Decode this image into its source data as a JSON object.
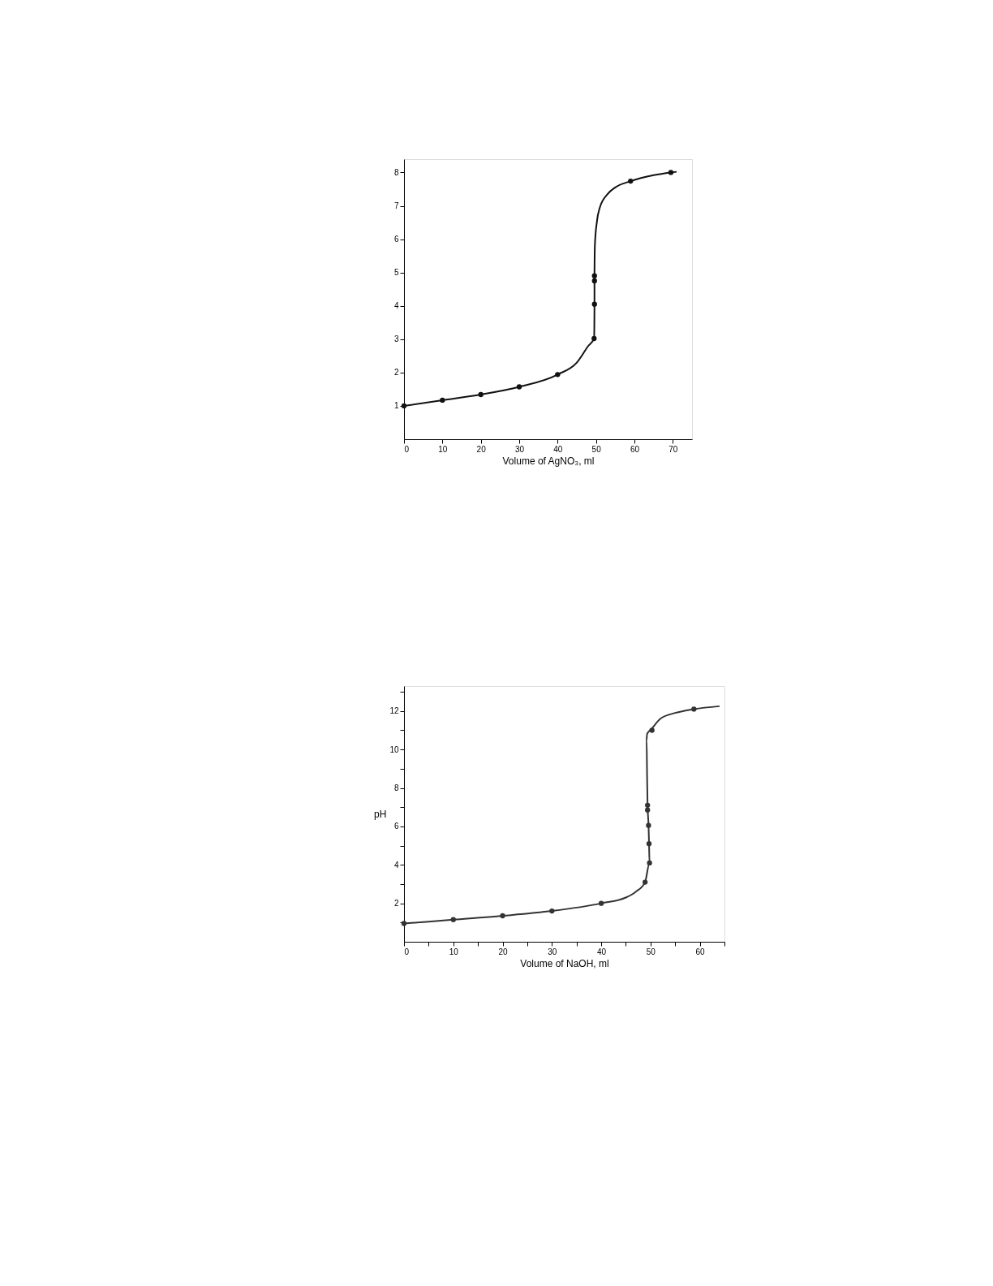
{
  "chart_data": [
    {
      "type": "line",
      "xlabel": "Volume of AgNO₃, ml",
      "xlim": [
        0,
        75
      ],
      "ylim": [
        0,
        8.4
      ],
      "xticks": [
        0,
        10,
        20,
        30,
        40,
        50,
        60,
        70
      ],
      "yticks": [
        1,
        2,
        3,
        4,
        5,
        6,
        7,
        8
      ],
      "grid": false,
      "series": [
        {
          "color": "#111111",
          "marker": "none",
          "line_style": "solid",
          "x": [
            0,
            10,
            20,
            30,
            40,
            45,
            48,
            49.5,
            49.6,
            49.6,
            49.7,
            50.2,
            51,
            53,
            55,
            59,
            65,
            69.5,
            71
          ],
          "values": [
            1.0,
            1.17,
            1.34,
            1.57,
            1.94,
            2.3,
            2.8,
            3.02,
            4.05,
            4.9,
            5.8,
            6.5,
            6.95,
            7.35,
            7.55,
            7.74,
            7.92,
            8.0,
            8.02
          ]
        },
        {
          "type": "scatter",
          "color": "#111111",
          "marker": "circle",
          "x": [
            0,
            10,
            20,
            30,
            40,
            49.5,
            49.6,
            49.6,
            49.6,
            59,
            69.5
          ],
          "values": [
            1.0,
            1.17,
            1.34,
            1.57,
            1.94,
            3.02,
            4.05,
            4.75,
            4.9,
            7.74,
            8.0
          ]
        }
      ]
    },
    {
      "type": "line",
      "xlabel": "Volume of NaOH, ml",
      "ylabel": "pH",
      "xlim": [
        0,
        65
      ],
      "ylim": [
        0,
        13.3
      ],
      "grid": false,
      "xticks": [
        0,
        {
          "value": 5,
          "label": null
        },
        10,
        {
          "value": 15,
          "label": null
        },
        20,
        {
          "value": 25,
          "label": null
        },
        30,
        {
          "value": 35,
          "label": null
        },
        40,
        {
          "value": 45,
          "label": null
        },
        50,
        {
          "value": 55,
          "label": null
        },
        60,
        {
          "value": 65,
          "label": null
        }
      ],
      "yticks": [
        {
          "value": 1,
          "label": null
        },
        2,
        {
          "value": 3,
          "label": null
        },
        4,
        {
          "value": 5,
          "label": null
        },
        6,
        {
          "value": 7,
          "label": null
        },
        8,
        {
          "value": 9,
          "label": null
        },
        10,
        {
          "value": 11,
          "label": null
        },
        12,
        {
          "value": 13,
          "label": null
        }
      ],
      "series": [
        {
          "color": "#333333",
          "marker": "none",
          "line_style": "solid",
          "x": [
            0,
            10,
            20,
            30,
            40,
            45,
            47,
            48.9,
            49.8,
            49.7,
            49.6,
            49.4,
            49.3,
            49.2,
            49.3,
            50.3,
            52,
            55,
            58.8,
            64
          ],
          "values": [
            0.95,
            1.15,
            1.35,
            1.6,
            2.0,
            2.3,
            2.6,
            3.1,
            4.1,
            5.1,
            6.05,
            7.1,
            8.7,
            10.5,
            10.8,
            11.1,
            11.6,
            11.9,
            12.1,
            12.25
          ]
        },
        {
          "type": "scatter",
          "color": "#333333",
          "marker": "circle",
          "x": [
            0,
            10,
            20,
            30,
            40,
            48.9,
            49.8,
            49.7,
            49.6,
            49.4,
            49.4,
            50.3,
            58.8
          ],
          "values": [
            0.95,
            1.15,
            1.35,
            1.6,
            2.0,
            3.1,
            4.1,
            5.1,
            6.05,
            6.85,
            7.1,
            11.0,
            12.1
          ]
        }
      ]
    }
  ]
}
